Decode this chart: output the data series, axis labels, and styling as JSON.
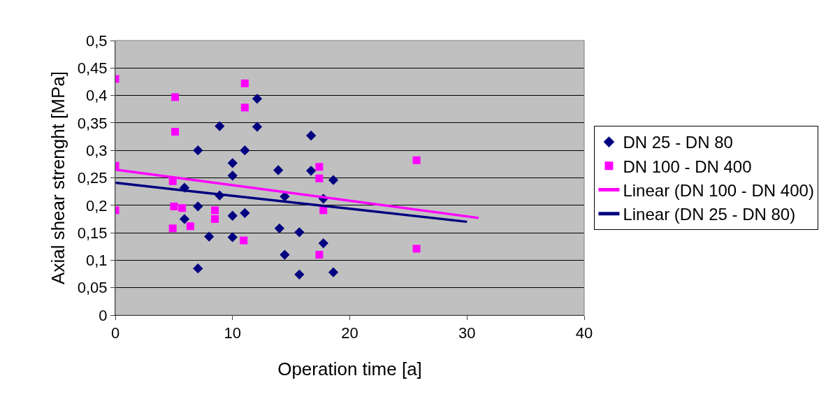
{
  "chart_data": {
    "type": "scatter",
    "xlabel": "Operation time [a]",
    "ylabel": "Axial shear strenght [MPa]",
    "xlim": [
      0,
      40
    ],
    "xticks": [
      0,
      10,
      20,
      30,
      40
    ],
    "ylim": [
      0,
      0.5
    ],
    "yticks": [
      {
        "value": 0,
        "label": "0"
      },
      {
        "value": 0.05,
        "label": "0,05"
      },
      {
        "value": 0.1,
        "label": "0,1"
      },
      {
        "value": 0.15,
        "label": "0,15"
      },
      {
        "value": 0.2,
        "label": "0,2"
      },
      {
        "value": 0.25,
        "label": "0,25"
      },
      {
        "value": 0.3,
        "label": "0,3"
      },
      {
        "value": 0.35,
        "label": "0,35"
      },
      {
        "value": 0.4,
        "label": "0,4"
      },
      {
        "value": 0.45,
        "label": "0,45"
      },
      {
        "value": 0.5,
        "label": "0,5"
      }
    ],
    "grid": "y",
    "legend": "right",
    "series": [
      {
        "name": "DN 25 - DN 80",
        "color": "#000080",
        "marker": "diamond",
        "x": [
          5.9,
          5.9,
          7.05,
          7.05,
          7.05,
          8.0,
          8.9,
          8.9,
          10.0,
          10.0,
          10.0,
          10.0,
          11.05,
          11.05,
          12.1,
          12.1,
          13.9,
          14.0,
          14.45,
          14.45,
          15.7,
          15.7,
          16.7,
          16.7,
          17.75,
          17.75,
          18.6,
          18.6
        ],
        "values": [
          0.232,
          0.175,
          0.085,
          0.3,
          0.198,
          0.143,
          0.344,
          0.218,
          0.277,
          0.254,
          0.181,
          0.142,
          0.3,
          0.186,
          0.394,
          0.343,
          0.264,
          0.158,
          0.11,
          0.216,
          0.151,
          0.074,
          0.327,
          0.263,
          0.212,
          0.131,
          0.246,
          0.078
        ]
      },
      {
        "name": "DN 100 - DN 400",
        "color": "#ff00ff",
        "marker": "square",
        "x": [
          0,
          0,
          0,
          5.1,
          5.1,
          4.9,
          5.0,
          4.9,
          5.7,
          6.4,
          8.5,
          8.5,
          11.05,
          11.05,
          10.95,
          17.4,
          17.4,
          17.75,
          17.4,
          25.7,
          25.7
        ],
        "values": [
          0.43,
          0.272,
          0.191,
          0.397,
          0.334,
          0.244,
          0.198,
          0.158,
          0.195,
          0.162,
          0.191,
          0.175,
          0.422,
          0.378,
          0.136,
          0.27,
          0.249,
          0.191,
          0.11,
          0.282,
          0.121
        ]
      },
      {
        "name": "Linear (DN 100 - DN 400)",
        "type": "line",
        "color": "#ff00ff",
        "marker": "none",
        "line_style": "solid",
        "x": [
          0,
          31
        ],
        "values": [
          0.265,
          0.177
        ]
      },
      {
        "name": "Linear (DN 25 - DN 80)",
        "type": "line",
        "color": "#000080",
        "marker": "none",
        "line_style": "solid",
        "x": [
          0,
          30
        ],
        "values": [
          0.241,
          0.17
        ]
      }
    ]
  }
}
